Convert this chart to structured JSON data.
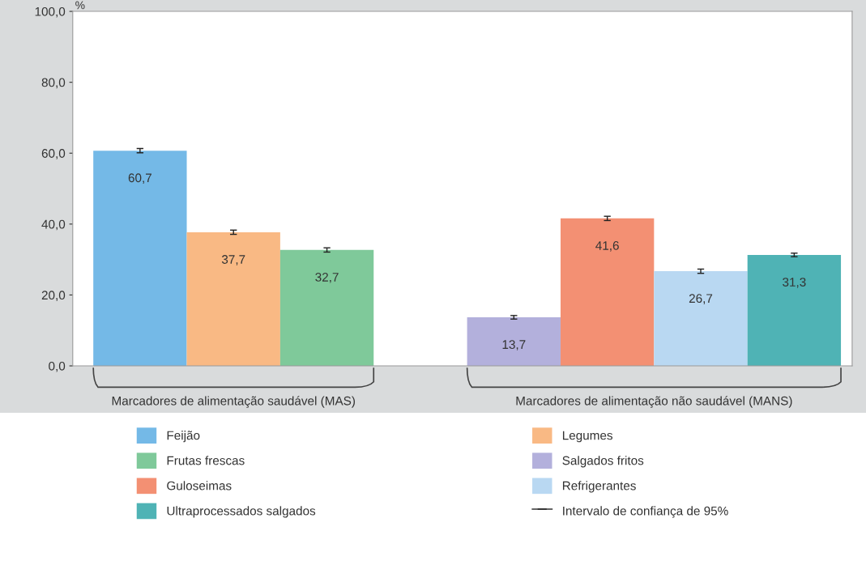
{
  "chart_data": {
    "type": "bar",
    "ylabel": "%",
    "categories": [
      null,
      null,
      null,
      null,
      null,
      null,
      null,
      null
    ],
    "series": [
      {
        "name": "Feijão",
        "color": "#74b9e7",
        "values": [
          60.7,
          null,
          null,
          null,
          null,
          null,
          null,
          null
        ],
        "errors": [
          0.6,
          null,
          null,
          null,
          null,
          null,
          null,
          null
        ],
        "value_labels": [
          "60,7",
          null,
          null,
          null,
          null,
          null,
          null,
          null
        ]
      },
      {
        "name": "Legumes",
        "color": "#f9b984",
        "values": [
          null,
          37.7,
          null,
          null,
          null,
          null,
          null,
          null
        ],
        "errors": [
          null,
          0.6,
          null,
          null,
          null,
          null,
          null,
          null
        ],
        "value_labels": [
          null,
          "37,7",
          null,
          null,
          null,
          null,
          null,
          null
        ]
      },
      {
        "name": "Frutas frescas",
        "color": "#7fc99a",
        "values": [
          null,
          null,
          32.7,
          null,
          null,
          null,
          null,
          null
        ],
        "errors": [
          null,
          null,
          0.6,
          null,
          null,
          null,
          null,
          null
        ],
        "value_labels": [
          null,
          null,
          "32,7",
          null,
          null,
          null,
          null,
          null
        ]
      },
      {
        "name": "Salgados fritos",
        "color": "#b3b0dc",
        "values": [
          null,
          null,
          null,
          null,
          13.7,
          null,
          null,
          null
        ],
        "errors": [
          null,
          null,
          null,
          null,
          0.5,
          null,
          null,
          null
        ],
        "value_labels": [
          null,
          null,
          null,
          null,
          "13,7",
          null,
          null,
          null
        ]
      },
      {
        "name": "Guloseimas",
        "color": "#f39073",
        "values": [
          null,
          null,
          null,
          null,
          null,
          41.6,
          null,
          null
        ],
        "errors": [
          null,
          null,
          null,
          null,
          null,
          0.6,
          null,
          null
        ],
        "value_labels": [
          null,
          null,
          null,
          null,
          null,
          "41,6",
          null,
          null
        ]
      },
      {
        "name": "Refrigerantes",
        "color": "#b9d8f2",
        "values": [
          null,
          null,
          null,
          null,
          null,
          null,
          26.7,
          null
        ],
        "errors": [
          null,
          null,
          null,
          null,
          null,
          null,
          0.6,
          null
        ],
        "value_labels": [
          null,
          null,
          null,
          null,
          null,
          null,
          "26,7",
          null
        ]
      },
      {
        "name": "Ultraprocessados salgados",
        "color": "#4fb3b5",
        "values": [
          null,
          null,
          null,
          null,
          null,
          null,
          null,
          31.3
        ],
        "errors": [
          null,
          null,
          null,
          null,
          null,
          null,
          null,
          0.5
        ],
        "value_labels": [
          null,
          null,
          null,
          null,
          null,
          null,
          null,
          "31,3"
        ]
      }
    ],
    "ylim": [
      0,
      100
    ],
    "yticks": [
      {
        "value": 0,
        "label": "0,0"
      },
      {
        "value": 20,
        "label": "20,0"
      },
      {
        "value": 40,
        "label": "40,0"
      },
      {
        "value": 60,
        "label": "60,0"
      },
      {
        "value": 80,
        "label": "80,0"
      },
      {
        "value": 100,
        "label": "100,0"
      }
    ],
    "annotations": [
      "Marcadores de alimentação saudável (MAS)",
      "Marcadores de alimentação não saudável (MANS)",
      "Intervalo de confiança de 95%"
    ],
    "legend": "bottom",
    "grid": false
  }
}
